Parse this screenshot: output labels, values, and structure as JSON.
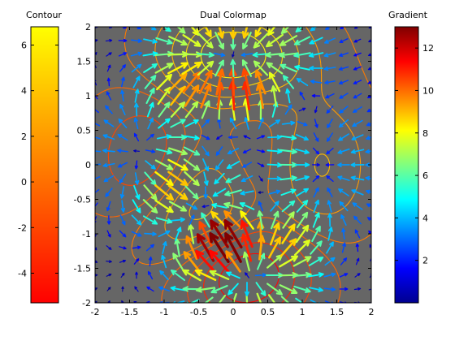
{
  "chart_data": {
    "type": "quiver",
    "title": "Dual Colormap",
    "xlim": [
      -2,
      2
    ],
    "ylim": [
      -2,
      2
    ],
    "x_ticks": [
      "-2",
      "-1.5",
      "-1",
      "-0.5",
      "0",
      "0.5",
      "1",
      "1.5",
      "2"
    ],
    "y_ticks": [
      "-2",
      "-1.5",
      "-1",
      "-0.5",
      "0",
      "0.5",
      "1",
      "1.5",
      "2"
    ],
    "grid": false,
    "background_color": "#666666",
    "contour_colorbar": {
      "label": "Contour",
      "colormap": "autumn",
      "range": [
        -5.3,
        6.8
      ],
      "tick_labels": [
        "6",
        "4",
        "2",
        "0",
        "-2",
        "-4"
      ],
      "tick_values": [
        6,
        4,
        2,
        0,
        -2,
        -4
      ]
    },
    "gradient_colorbar": {
      "label": "Gradient",
      "colormap": "jet",
      "range": [
        0,
        13
      ],
      "tick_labels": [
        "12",
        "10",
        "8",
        "6",
        "4",
        "2"
      ],
      "tick_values": [
        12,
        10,
        8,
        6,
        4,
        2
      ]
    },
    "field": {
      "function": "peaks",
      "grid_step": 0.2,
      "contour_levels": [
        -5,
        -3.5,
        -2,
        -0.5,
        0.5,
        2,
        3.5,
        5,
        6.5
      ]
    }
  }
}
